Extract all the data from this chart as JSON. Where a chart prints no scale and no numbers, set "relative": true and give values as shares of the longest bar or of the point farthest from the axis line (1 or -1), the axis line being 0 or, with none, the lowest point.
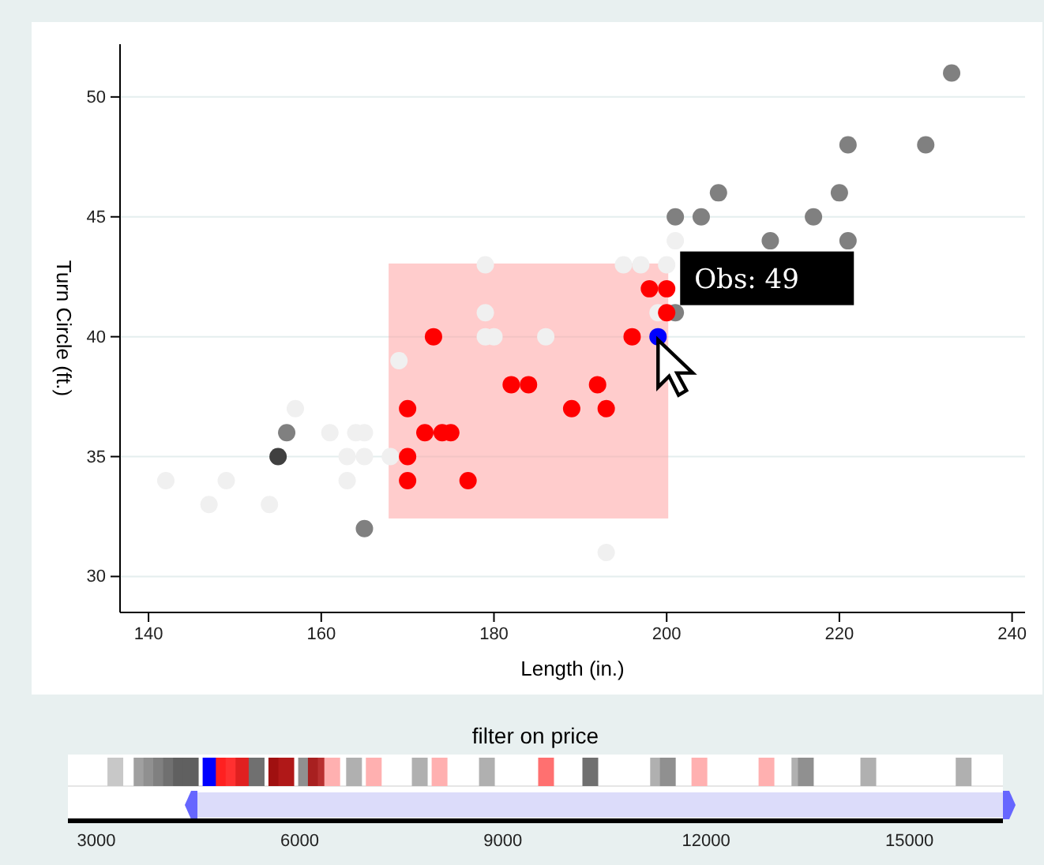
{
  "chart_data": [
    {
      "type": "scatter",
      "xlabel": "Length (in.)",
      "ylabel": "Turn Circle (ft.)",
      "xlim": [
        136.7,
        241.5
      ],
      "ylim": [
        28.5,
        52.2
      ],
      "xticks": [
        140,
        160,
        180,
        200,
        220,
        240
      ],
      "yticks": [
        30,
        35,
        40,
        45,
        50
      ],
      "grid": "y",
      "marker": "circle",
      "annotations": [
        {
          "text": "Obs: 49",
          "x": 199,
          "y": 40
        }
      ],
      "series": [
        {
          "color": "#f0f0f0",
          "x": [
            142,
            147,
            149,
            154,
            157,
            161,
            163,
            163,
            164,
            165,
            165,
            168,
            169,
            179,
            179,
            179,
            180,
            186,
            193,
            195,
            197,
            200,
            201,
            199
          ],
          "values": [
            34,
            33,
            34,
            33,
            37,
            36,
            35,
            34,
            36,
            36,
            35,
            35,
            39,
            43,
            41,
            40,
            40,
            40,
            31,
            43,
            43,
            43,
            44,
            41
          ]
        },
        {
          "color": "#808080",
          "x": [
            156,
            165,
            201,
            201,
            204,
            206,
            212,
            217,
            220,
            221,
            221,
            230,
            233
          ],
          "values": [
            36,
            32,
            41,
            45,
            45,
            46,
            44,
            45,
            46,
            44,
            48,
            48,
            51
          ]
        },
        {
          "color": "#404040",
          "x": [
            155
          ],
          "values": [
            35
          ]
        },
        {
          "color": "#ff0000",
          "x": [
            170,
            170,
            170,
            172,
            174,
            175,
            177,
            173,
            182,
            184,
            189,
            192,
            193,
            196,
            198,
            200,
            200
          ],
          "values": [
            37,
            35,
            34,
            36,
            36,
            36,
            34,
            40,
            38,
            38,
            37,
            38,
            37,
            40,
            42,
            42,
            41
          ]
        },
        {
          "color": "#0000ff",
          "x": [
            199
          ],
          "values": [
            40
          ]
        }
      ]
    },
    {
      "type": "bar",
      "title": "filter on price",
      "xlim": [
        2580,
        16380
      ],
      "xticks": [
        3000,
        6000,
        9000,
        12000,
        15000
      ],
      "relative": true,
      "tick_labels": "x",
      "series": [
        {
          "x": [
            3280,
            3667,
            3812,
            3955,
            4102,
            4249,
            4393,
            4685,
            4880,
            5025,
            5171,
            5365,
            5656,
            5803,
            6095,
            6239,
            6385,
            6481,
            6803,
            7094,
            7773,
            8065,
            8764,
            9637,
            10290,
            11290,
            11434,
            11900,
            12890,
            13376,
            13471,
            14393,
            15800
          ],
          "values": [
            1,
            1,
            1,
            1,
            1,
            1,
            1,
            1,
            1,
            1,
            1,
            1,
            1,
            1,
            1,
            1,
            1,
            1,
            1,
            1,
            1,
            1,
            1,
            1,
            1,
            1,
            1,
            1,
            1,
            1,
            1,
            1,
            1
          ],
          "colors": [
            "#c8c8c8",
            "#a0a0a0",
            "#909090",
            "#808080",
            "#707070",
            "#606060",
            "#606060",
            "#0000ff",
            "#ff2020",
            "#ff3030",
            "#e02020",
            "#707070",
            "#a01010",
            "#b01818",
            "#909090",
            "#a82020",
            "#b83030",
            "#ffb0b0",
            "#b0b0b0",
            "#ffb0b0",
            "#b0b0b0",
            "#ffb0b0",
            "#b0b0b0",
            "#ff7070",
            "#707070",
            "#b0b0b0",
            "#909090",
            "#ffb0b0",
            "#ffb0b0",
            "#b0b0b0",
            "#909090",
            "#b0b0b0",
            "#b0b0b0"
          ]
        }
      ]
    }
  ]
}
